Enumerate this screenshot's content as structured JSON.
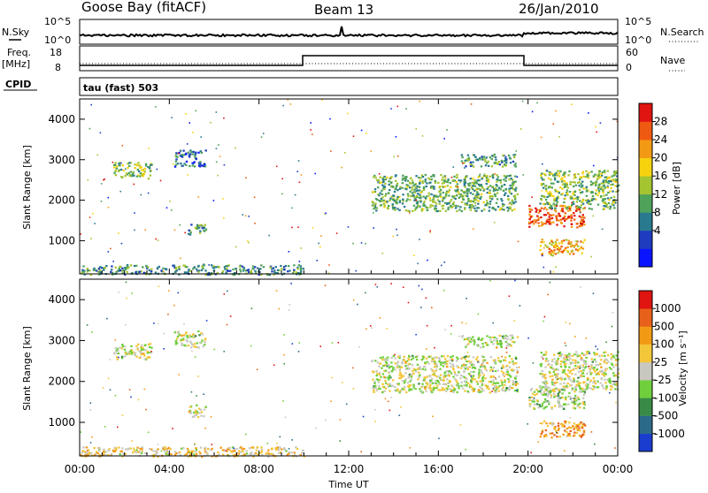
{
  "header": {
    "station": "Goose Bay (fitACF)",
    "beam": "Beam 13",
    "date": "26/Jan/2010"
  },
  "top_panels": {
    "nsky_label": "N.Sky",
    "nsearch_label": "N.Search",
    "noise_ticks": [
      "10^5",
      "10^0"
    ],
    "noise_ticks_right": [
      "10^5",
      "10^0"
    ],
    "freq_label_1": "Freq.",
    "freq_label_2": "[MHz]",
    "freq_ticks": [
      "18",
      "8"
    ],
    "nave_label": "Nave",
    "nave_ticks": [
      "60",
      "0"
    ],
    "cpid_label": "CPID",
    "cpid_text": "tau (fast) 503"
  },
  "chart_data": [
    {
      "type": "heatmap",
      "name": "power",
      "ylabel": "Slant Range [km]",
      "xlabel": "Time UT",
      "xlim": [
        0,
        24
      ],
      "ylim": [
        180,
        4500
      ],
      "y_ticks": [
        "4000",
        "3000",
        "2000",
        "1000"
      ],
      "x_ticks": [
        "00:00",
        "04:00",
        "08:00",
        "12:00",
        "16:00",
        "20:00",
        "00:00"
      ],
      "colorbar_label": "Power [dB]",
      "colorbar_ticks": [
        "28",
        "24",
        "20",
        "16",
        "12",
        "8",
        "4"
      ],
      "colorbar_colors": [
        "#0a14ff",
        "#1f3cbf",
        "#2a7a8f",
        "#4ea25a",
        "#a4c431",
        "#f6d20f",
        "#f39a14",
        "#ef5a12",
        "#e01410"
      ],
      "regions": [
        {
          "t": [
            1.5,
            3.2
          ],
          "r": [
            2550,
            2950
          ],
          "level": 0.45
        },
        {
          "t": [
            4.2,
            5.6
          ],
          "r": [
            2850,
            3250
          ],
          "level": 0.25
        },
        {
          "t": [
            4.8,
            5.6
          ],
          "r": [
            1150,
            1450
          ],
          "level": 0.35
        },
        {
          "t": [
            13.0,
            19.5
          ],
          "r": [
            1750,
            2650
          ],
          "level": 0.4
        },
        {
          "t": [
            17.0,
            19.5
          ],
          "r": [
            2850,
            3150
          ],
          "level": 0.35
        },
        {
          "t": [
            20.0,
            22.5
          ],
          "r": [
            1350,
            1900
          ],
          "level": 0.85
        },
        {
          "t": [
            20.5,
            22.5
          ],
          "r": [
            650,
            1050
          ],
          "level": 0.7
        },
        {
          "t": [
            20.5,
            24.0
          ],
          "r": [
            1800,
            2750
          ],
          "level": 0.45
        },
        {
          "t": [
            0.0,
            10.0
          ],
          "r": [
            180,
            420
          ],
          "level": 0.35
        }
      ]
    },
    {
      "type": "heatmap",
      "name": "velocity",
      "ylabel": "Slant Range [km]",
      "xlabel": "Time UT",
      "xlim": [
        0,
        24
      ],
      "ylim": [
        180,
        4500
      ],
      "y_ticks": [
        "4000",
        "3000",
        "2000",
        "1000"
      ],
      "x_ticks": [
        "00:00",
        "04:00",
        "08:00",
        "12:00",
        "16:00",
        "20:00",
        "00:00"
      ],
      "colorbar_label": "Velocity [m s⁻¹]",
      "colorbar_ticks": [
        "1000",
        "500",
        "100",
        "25",
        "-25",
        "-100",
        "-500",
        "-1000"
      ],
      "colorbar_colors": [
        "#1a3dcf",
        "#2c6a8a",
        "#3a8a47",
        "#6fcf3c",
        "#c8c8c0",
        "#f3c63a",
        "#f39a14",
        "#e8611a",
        "#e01410"
      ],
      "regions": [
        {
          "t": [
            1.5,
            3.2
          ],
          "r": [
            2550,
            2950
          ],
          "level": 0.5
        },
        {
          "t": [
            4.2,
            5.6
          ],
          "r": [
            2850,
            3250
          ],
          "level": 0.5
        },
        {
          "t": [
            4.8,
            5.6
          ],
          "r": [
            1150,
            1450
          ],
          "level": 0.5
        },
        {
          "t": [
            13.0,
            19.5
          ],
          "r": [
            1750,
            2650
          ],
          "level": 0.5
        },
        {
          "t": [
            17.0,
            19.5
          ],
          "r": [
            2850,
            3150
          ],
          "level": 0.5
        },
        {
          "t": [
            20.0,
            22.5
          ],
          "r": [
            1350,
            1900
          ],
          "level": 0.45
        },
        {
          "t": [
            20.5,
            22.5
          ],
          "r": [
            650,
            1050
          ],
          "level": 0.7
        },
        {
          "t": [
            20.5,
            24.0
          ],
          "r": [
            1800,
            2750
          ],
          "level": 0.5
        },
        {
          "t": [
            0.0,
            10.0
          ],
          "r": [
            180,
            420
          ],
          "level": 0.6
        }
      ]
    }
  ]
}
